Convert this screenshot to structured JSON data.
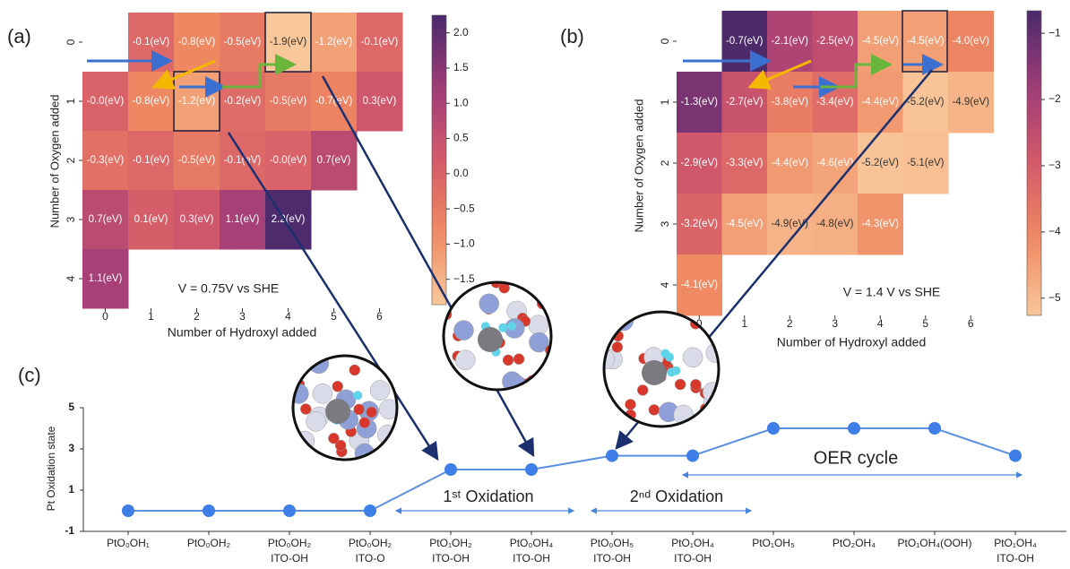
{
  "chart_data": [
    {
      "type": "heatmap",
      "panel_label": "(a)",
      "x_label": "Number of Hydroxyl added",
      "y_label": "Number of Oxygen added",
      "annotation": "V = 0.75V vs SHE",
      "x_categories": [
        "0",
        "1",
        "2",
        "3",
        "4",
        "5",
        "6"
      ],
      "y_categories": [
        "0",
        "1",
        "2",
        "3",
        "4"
      ],
      "values": [
        [
          null,
          -0.1,
          -0.8,
          -0.5,
          -1.9,
          -1.2,
          -0.1
        ],
        [
          0,
          -0.8,
          -1.2,
          -0.2,
          -0.5,
          -0.7,
          0.3
        ],
        [
          -0.3,
          -0.1,
          -0.5,
          -0.1,
          0,
          0.7,
          null
        ],
        [
          0.7,
          0.1,
          0.3,
          1.1,
          2.2,
          null,
          null
        ],
        [
          1.1,
          null,
          null,
          null,
          null,
          null,
          null
        ]
      ],
      "value_labels": [
        [
          null,
          "-0.1(eV)",
          "-0.8(eV)",
          "-0.5(eV)",
          "-1.9(eV)",
          "-1.2(eV)",
          "-0.1(eV)"
        ],
        [
          "-0.0(eV)",
          "-0.8(eV)",
          "-1.2(eV)",
          "-0.2(eV)",
          "-0.5(eV)",
          "-0.7(eV)",
          "0.3(eV)"
        ],
        [
          "-0.3(eV)",
          "-0.1(eV)",
          "-0.5(eV)",
          "-0.1(eV)",
          "-0.0(eV)",
          "0.7(eV)",
          null
        ],
        [
          "0.7(eV)",
          "0.1(eV)",
          "0.3(eV)",
          "1.1(eV)",
          "2.2(eV)",
          null,
          null
        ],
        [
          "1.1(eV)",
          null,
          null,
          null,
          null,
          null,
          null
        ]
      ],
      "clim": [
        -1.86,
        2.25
      ],
      "cticks": [
        {
          "value": 2,
          "label": "2.0"
        },
        {
          "value": 1.5,
          "label": "1.5"
        },
        {
          "value": 1,
          "label": "1.0"
        },
        {
          "value": 0.5,
          "label": "0.5"
        },
        {
          "value": 0,
          "label": "0.0"
        },
        {
          "value": -0.5,
          "label": "−0.5"
        },
        {
          "value": -1,
          "label": "−1.0"
        },
        {
          "value": -1.5,
          "label": "−1.5"
        }
      ]
    },
    {
      "type": "heatmap",
      "panel_label": "(b)",
      "x_label": "Number of Hydroxyl added",
      "y_label": "Number of Oxygen added",
      "annotation": "V = 1.4 V vs SHE",
      "x_categories": [
        "0",
        "1",
        "2",
        "3",
        "4",
        "5",
        "6"
      ],
      "y_categories": [
        "0",
        "1",
        "2",
        "3",
        "4"
      ],
      "values": [
        [
          null,
          -0.7,
          -2.1,
          -2.5,
          -4.5,
          -4.5,
          -4.0
        ],
        [
          -1.3,
          -2.7,
          -3.8,
          -3.4,
          -4.4,
          -5.2,
          -4.9
        ],
        [
          -2.9,
          -3.3,
          -4.4,
          -4.6,
          -5.2,
          -5.1,
          null
        ],
        [
          -3.2,
          -4.5,
          -4.9,
          -4.8,
          -4.3,
          null,
          null
        ],
        [
          -4.1,
          null,
          null,
          null,
          null,
          null,
          null
        ]
      ],
      "value_labels": [
        [
          null,
          "-0.7(eV)",
          "-2.1(eV)",
          "-2.5(eV)",
          "-4.5(eV)",
          "-4.5(eV)",
          "-4.0(eV)"
        ],
        [
          "-1.3(eV)",
          "-2.7(eV)",
          "-3.8(eV)",
          "-3.4(eV)",
          "-4.4(eV)",
          "-5.2(eV)",
          "-4.9(eV)"
        ],
        [
          "-2.9(eV)",
          "-3.3(eV)",
          "-4.4(eV)",
          "-4.6(eV)",
          "-5.2(eV)",
          "-5.1(eV)",
          null
        ],
        [
          "-3.2(eV)",
          "-4.5(eV)",
          "-4.9(eV)",
          "-4.8(eV)",
          "-4.3(eV)",
          null,
          null
        ],
        [
          "-4.1(eV)",
          null,
          null,
          null,
          null,
          null,
          null
        ]
      ],
      "clim": [
        -5.26,
        -0.66
      ],
      "cticks": [
        {
          "value": -1,
          "label": "−1"
        },
        {
          "value": -2,
          "label": "−2"
        },
        {
          "value": -3,
          "label": "−3"
        },
        {
          "value": -4,
          "label": "−4"
        },
        {
          "value": -5,
          "label": "−5"
        }
      ]
    },
    {
      "type": "line",
      "panel_label": "(c)",
      "y_label": "Pt Oxidation state",
      "categories": [
        "PtO₀OH₁",
        "PtO₀OH₂",
        "PtO₀OH₂",
        "PtO₀OH₂",
        "PtO₁OH₂",
        "PtO₀OH₄",
        "PtO₀OH₅",
        "PtO₁OH₄",
        "PtO₁OH₅",
        "PtO₂OH₄",
        "PtO₁OH₄(OOH)",
        "PtO₁OH₄"
      ],
      "subcategories": [
        null,
        null,
        "ITO-OH",
        "ITO-O",
        "ITO-OH",
        "ITO-OH",
        "ITO-OH",
        "ITO-OH",
        null,
        null,
        null,
        "ITO-OH"
      ],
      "series": [
        {
          "color": "#5b8fe0",
          "values": [
            0,
            0,
            0,
            0,
            2,
            2,
            2.67,
            2.67,
            4,
            4,
            4,
            2.67
          ]
        }
      ],
      "ylim": [
        -1,
        5
      ],
      "yticks": [
        -1,
        1,
        3,
        5
      ],
      "annotations": [
        "1ˢᵗ Oxidation",
        "2ⁿᵈ Oxidation",
        "OER cycle"
      ]
    }
  ]
}
